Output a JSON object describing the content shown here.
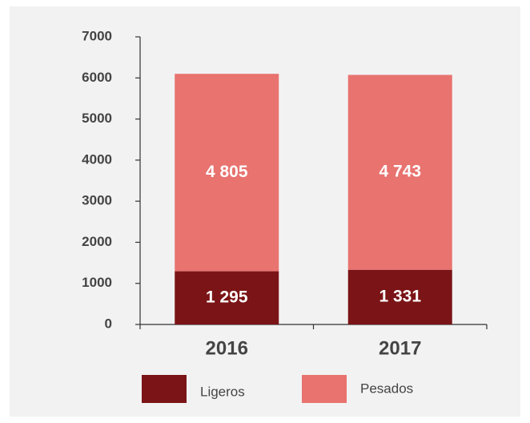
{
  "chart_data": {
    "type": "stacked_bar",
    "categories": [
      "2016",
      "2017"
    ],
    "series": [
      {
        "name": "Ligeros",
        "color": "#7b1416",
        "values": [
          1295,
          1331
        ],
        "value_labels": [
          "1 295",
          "1 331"
        ]
      },
      {
        "name": "Pesados",
        "color": "#e8736f",
        "values": [
          4805,
          4743
        ],
        "value_labels": [
          "4 805",
          "4 743"
        ]
      }
    ],
    "ylim": [
      0,
      7000
    ],
    "yticks": [
      0,
      1000,
      2000,
      3000,
      4000,
      5000,
      6000,
      7000
    ]
  }
}
